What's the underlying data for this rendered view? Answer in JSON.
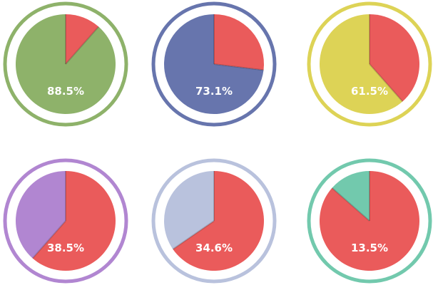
{
  "chart_data": {
    "type": "pie",
    "charts": [
      {
        "value": 88.5,
        "label": "88.5%",
        "color": "#8eb26a",
        "remainder_color": "#ea5b5b"
      },
      {
        "value": 73.1,
        "label": "73.1%",
        "color": "#6775ad",
        "remainder_color": "#ea5b5b"
      },
      {
        "value": 61.5,
        "label": "61.5%",
        "color": "#ddd356",
        "remainder_color": "#ea5b5b"
      },
      {
        "value": 38.5,
        "label": "38.5%",
        "color": "#b186d1",
        "remainder_color": "#ea5b5b"
      },
      {
        "value": 34.6,
        "label": "34.6%",
        "color": "#b9c2dd",
        "remainder_color": "#ea5b5b"
      },
      {
        "value": 13.5,
        "label": "13.5%",
        "color": "#72c9ad",
        "remainder_color": "#ea5b5b"
      }
    ]
  }
}
